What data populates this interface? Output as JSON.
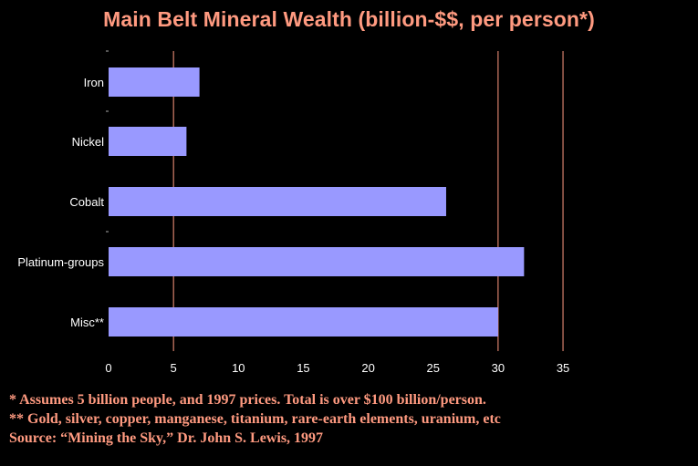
{
  "colors": {
    "background": "#000000",
    "accent": "#ff9a80",
    "bar": "#9999ff",
    "axis_text": "#ffffff"
  },
  "chart_data": {
    "type": "bar",
    "orientation": "horizontal",
    "title": "Main Belt Mineral Wealth (billion-$$, per person*)",
    "categories": [
      "Iron",
      "Nickel",
      "Cobalt",
      "Platinum-groups",
      "Misc**"
    ],
    "values": [
      7,
      6,
      26,
      32,
      30
    ],
    "xlim": [
      0,
      35
    ],
    "xticks": [
      "0",
      "5",
      "10",
      "15",
      "20",
      "25",
      "30",
      "35"
    ],
    "gridlines_at": [
      5,
      30,
      35
    ],
    "xlabel": "",
    "ylabel": "",
    "legend": "none"
  },
  "footnotes": [
    "* Assumes 5 billion people, and 1997 prices.  Total is over $100 billion/person.",
    "** Gold, silver, copper, manganese, titanium, rare-earth elements, uranium, etc",
    "Source: “Mining the Sky,” Dr. John S. Lewis, 1997"
  ]
}
